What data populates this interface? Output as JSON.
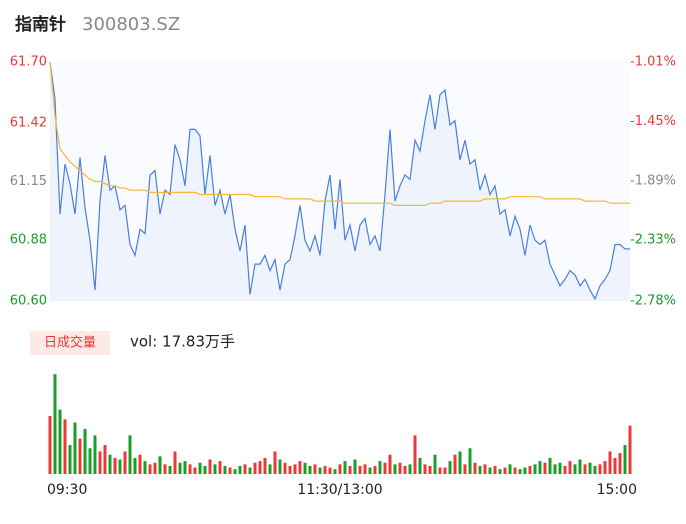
{
  "chart_data": [
    {
      "type": "line",
      "title": "指南针",
      "subtitle": "300803.SZ",
      "categories": [
        "09:30",
        null,
        null,
        null,
        null,
        null,
        null,
        null,
        null,
        null,
        null,
        null,
        null,
        null,
        null,
        null,
        null,
        null,
        null,
        null,
        null,
        null,
        null,
        null,
        null,
        null,
        null,
        null,
        null,
        null,
        null,
        null,
        null,
        null,
        null,
        null,
        null,
        null,
        null,
        null,
        null,
        null,
        null,
        null,
        null,
        null,
        null,
        null,
        null,
        null,
        null,
        null,
        null,
        null,
        null,
        null,
        null,
        null,
        "11:30/13:00",
        null,
        null,
        null,
        null,
        null,
        null,
        null,
        null,
        null,
        null,
        null,
        null,
        null,
        null,
        null,
        null,
        null,
        null,
        null,
        null,
        null,
        null,
        null,
        null,
        null,
        null,
        null,
        null,
        null,
        null,
        null,
        null,
        null,
        null,
        null,
        null,
        null,
        null,
        null,
        null,
        null,
        null,
        null,
        null,
        null,
        null,
        null,
        null,
        null,
        null,
        null,
        null,
        null,
        null,
        null,
        null,
        null,
        "15:00"
      ],
      "series": [
        {
          "name": "price",
          "color": "#4a7fe0",
          "values": [
            61.7,
            61.53,
            61.0,
            61.23,
            61.14,
            61.0,
            61.26,
            61.03,
            60.88,
            60.65,
            61.06,
            61.27,
            61.11,
            61.13,
            61.02,
            61.04,
            60.86,
            60.81,
            60.93,
            60.91,
            61.18,
            61.2,
            61.0,
            61.11,
            61.09,
            61.32,
            61.25,
            61.13,
            61.39,
            61.39,
            61.36,
            61.09,
            61.27,
            61.04,
            61.11,
            61.0,
            61.09,
            60.93,
            60.83,
            60.95,
            60.63,
            60.77,
            60.77,
            60.81,
            60.74,
            60.79,
            60.65,
            60.77,
            60.79,
            60.9,
            61.04,
            60.88,
            60.83,
            60.9,
            60.81,
            61.06,
            61.18,
            60.93,
            61.16,
            60.88,
            60.95,
            60.83,
            60.95,
            60.98,
            60.86,
            60.9,
            60.83,
            61.09,
            61.39,
            61.06,
            61.13,
            61.18,
            61.16,
            61.34,
            61.29,
            61.43,
            61.55,
            61.39,
            61.55,
            61.57,
            61.41,
            61.43,
            61.25,
            61.34,
            61.23,
            61.25,
            61.11,
            61.18,
            61.09,
            61.13,
            61.0,
            61.02,
            60.9,
            60.99,
            60.93,
            60.81,
            60.95,
            60.88,
            60.86,
            60.88,
            60.77,
            60.72,
            60.67,
            60.7,
            60.74,
            60.72,
            60.67,
            60.7,
            60.65,
            60.61,
            60.67,
            60.7,
            60.74,
            60.86,
            60.86,
            60.84,
            60.84
          ]
        },
        {
          "name": "average",
          "color": "#f5b83c",
          "values": [
            61.7,
            61.45,
            61.3,
            61.27,
            61.24,
            61.22,
            61.2,
            61.18,
            61.16,
            61.15,
            61.15,
            61.14,
            61.13,
            61.13,
            61.12,
            61.12,
            61.11,
            61.11,
            61.11,
            61.11,
            61.1,
            61.1,
            61.1,
            61.1,
            61.1,
            61.1,
            61.1,
            61.1,
            61.1,
            61.1,
            61.09,
            61.09,
            61.09,
            61.09,
            61.09,
            61.09,
            61.09,
            61.09,
            61.09,
            61.09,
            61.09,
            61.08,
            61.08,
            61.08,
            61.08,
            61.08,
            61.08,
            61.07,
            61.07,
            61.07,
            61.07,
            61.07,
            61.07,
            61.06,
            61.06,
            61.06,
            61.06,
            61.06,
            61.06,
            61.05,
            61.05,
            61.05,
            61.05,
            61.05,
            61.05,
            61.05,
            61.05,
            61.05,
            61.05,
            61.04,
            61.04,
            61.04,
            61.04,
            61.04,
            61.04,
            61.04,
            61.05,
            61.05,
            61.05,
            61.06,
            61.06,
            61.06,
            61.06,
            61.06,
            61.06,
            61.06,
            61.06,
            61.07,
            61.07,
            61.07,
            61.07,
            61.07,
            61.08,
            61.08,
            61.08,
            61.08,
            61.08,
            61.08,
            61.08,
            61.07,
            61.07,
            61.07,
            61.07,
            61.07,
            61.07,
            61.07,
            61.07,
            61.06,
            61.06,
            61.06,
            61.06,
            61.06,
            61.05,
            61.05,
            61.05,
            61.05,
            61.05
          ]
        }
      ],
      "ylim": [
        60.6,
        61.7
      ],
      "yticks": [
        {
          "value": 61.7,
          "label": "61.70"
        },
        {
          "value": 61.42,
          "label": "61.42"
        },
        {
          "value": 61.15,
          "label": "61.15"
        },
        {
          "value": 60.88,
          "label": "60.88"
        },
        {
          "value": 60.6,
          "label": "60.60"
        }
      ],
      "y2lim": [
        -2.78,
        -1.01
      ],
      "y2ticks": [
        {
          "value": -1.01,
          "label": "-1.01%"
        },
        {
          "value": -1.45,
          "label": "-1.45%"
        },
        {
          "value": -1.89,
          "label": "-1.89%"
        },
        {
          "value": -2.33,
          "label": "-2.33%"
        },
        {
          "value": -2.78,
          "label": "-2.78%"
        }
      ]
    },
    {
      "type": "bar",
      "button": "日成交量",
      "annotation": "vol: 17.83万手",
      "up_color": "#e83a3a",
      "down_color": "#1a9e2a",
      "ylim": [
        0,
        3200
      ],
      "values": [
        1800,
        3100,
        2000,
        1700,
        900,
        1600,
        1100,
        1400,
        800,
        1200,
        700,
        900,
        600,
        500,
        450,
        700,
        1200,
        500,
        600,
        400,
        300,
        350,
        550,
        300,
        250,
        700,
        350,
        400,
        300,
        200,
        350,
        250,
        450,
        300,
        400,
        250,
        200,
        150,
        250,
        300,
        200,
        350,
        400,
        500,
        300,
        700,
        450,
        350,
        250,
        300,
        400,
        350,
        250,
        300,
        200,
        250,
        200,
        150,
        300,
        400,
        250,
        450,
        250,
        300,
        200,
        250,
        400,
        350,
        600,
        300,
        350,
        250,
        300,
        1200,
        500,
        300,
        250,
        600,
        200,
        200,
        400,
        600,
        700,
        300,
        800,
        350,
        250,
        300,
        200,
        250,
        150,
        200,
        300,
        200,
        150,
        200,
        250,
        300,
        400,
        350,
        500,
        300,
        350,
        250,
        400,
        300,
        450,
        300,
        350,
        250,
        300,
        400,
        700,
        500,
        650,
        900,
        1500
      ]
    }
  ]
}
